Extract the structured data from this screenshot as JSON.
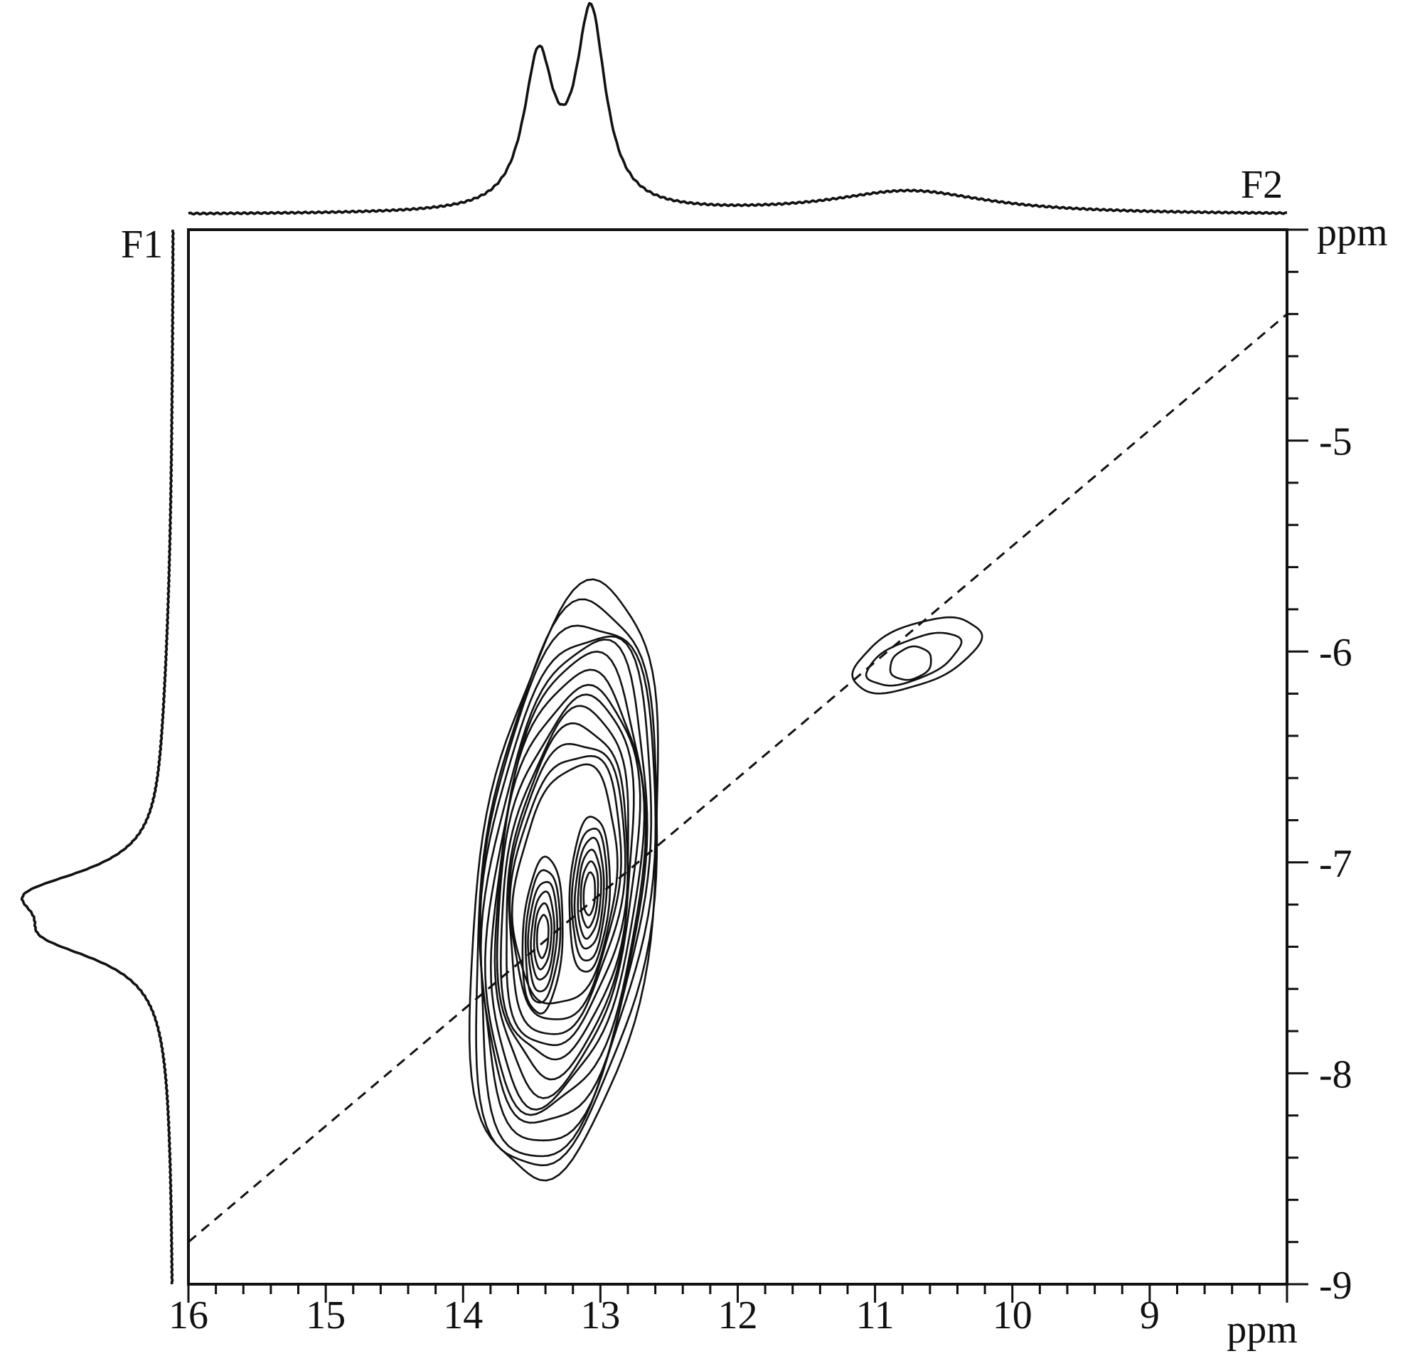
{
  "chart_data": {
    "type": "contour",
    "x_axis": {
      "label": "ppm",
      "range": [
        16,
        8
      ],
      "ticks": [
        "16",
        "15",
        "14",
        "13",
        "12",
        "11",
        "10",
        "9"
      ]
    },
    "y_axis": {
      "label": "ppm",
      "range": [
        -4,
        -9
      ],
      "ticks": [
        "-5",
        "-6",
        "-7",
        "-8",
        "-9"
      ]
    },
    "f2_label": "F2",
    "f1_label": "F1",
    "diagonal": {
      "style": "dashed",
      "from": [
        16,
        -8.8
      ],
      "to": [
        8,
        -4.4
      ]
    },
    "f2_projection": {
      "peaks": [
        {
          "ppm": 13.45,
          "height": 0.76
        },
        {
          "ppm": 13.07,
          "height": 1.0
        },
        {
          "ppm": 10.75,
          "height": 0.12
        }
      ]
    },
    "f1_projection": {
      "peaks": [
        {
          "ppm": -7.15,
          "height": 1.0
        },
        {
          "ppm": -7.35,
          "height": 0.8
        }
      ]
    },
    "contour_peaks": [
      {
        "x": 13.42,
        "y": -7.35
      },
      {
        "x": 13.08,
        "y": -7.15
      },
      {
        "x": 10.75,
        "y": -6.05
      }
    ]
  }
}
